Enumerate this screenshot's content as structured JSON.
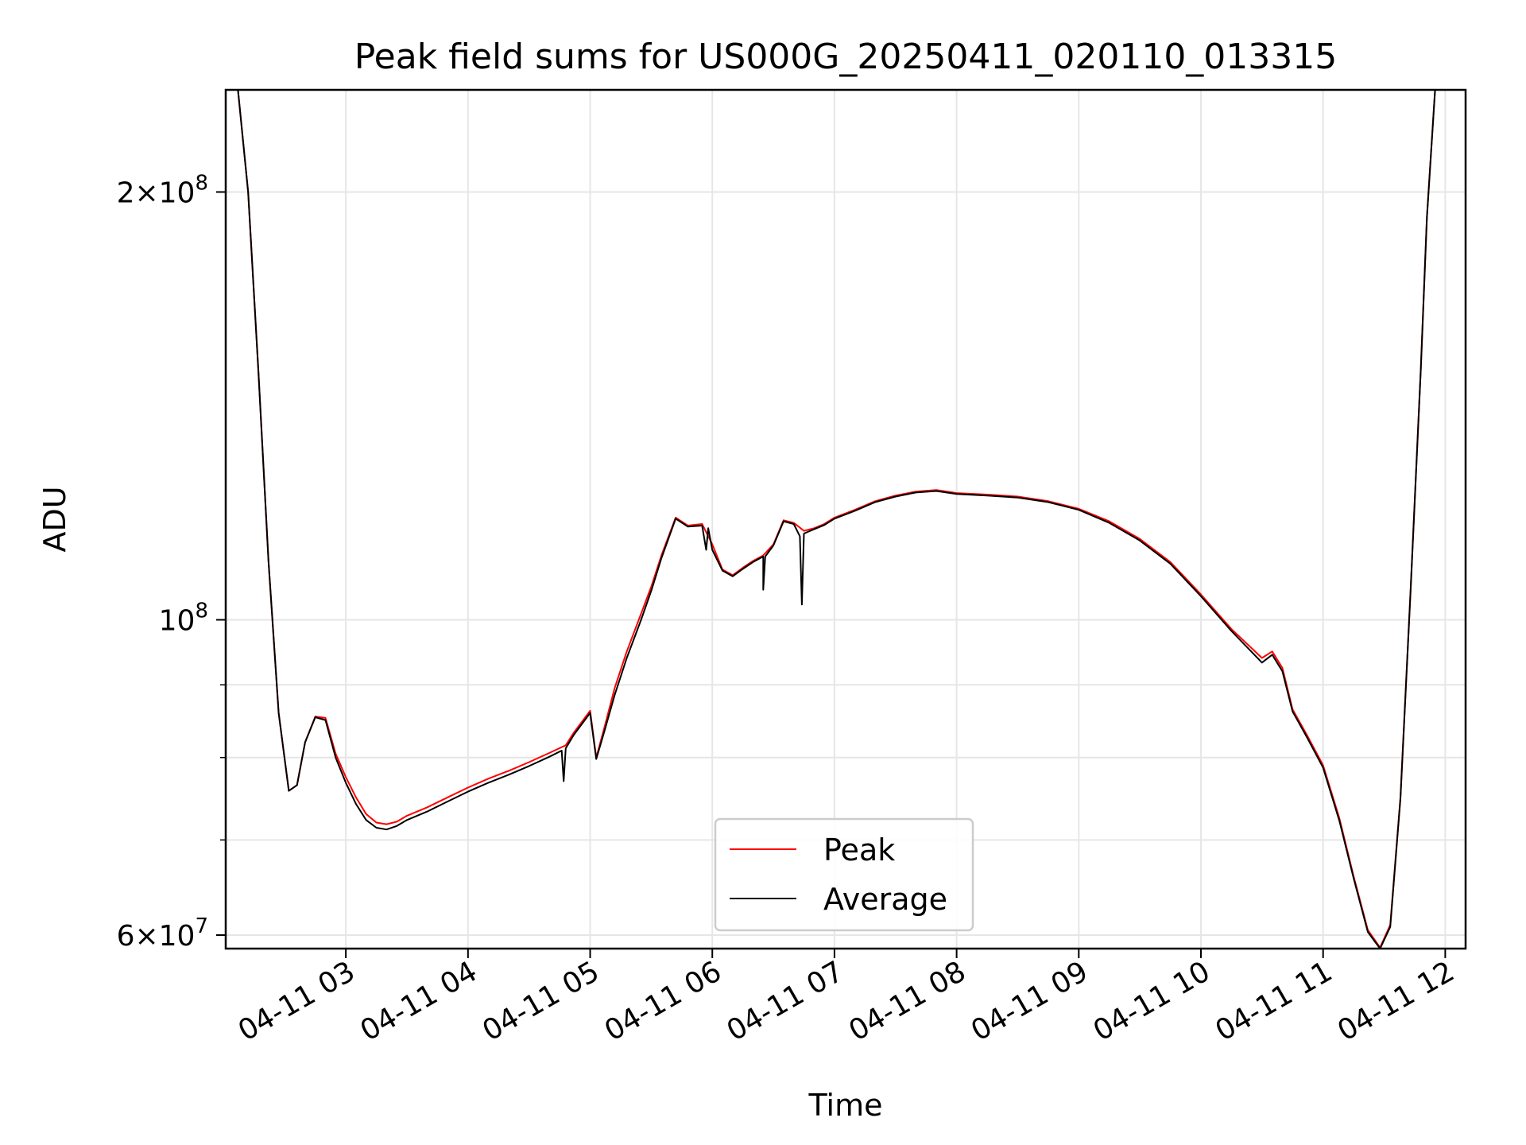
{
  "chart_data": {
    "type": "line",
    "title": "Peak field sums for US000G_20250411_020110_013315",
    "xlabel": "Time",
    "ylabel": "ADU",
    "y_scale": "log",
    "ylim": [
      58700000,
      236000000
    ],
    "xlim": [
      "2025-04-11 02:01",
      "2025-04-11 12:10"
    ],
    "grid": true,
    "legend_position": "lower center",
    "x_ticks": [
      {
        "t": "2025-04-11 03:00",
        "label": "04-11 03"
      },
      {
        "t": "2025-04-11 04:00",
        "label": "04-11 04"
      },
      {
        "t": "2025-04-11 05:00",
        "label": "04-11 05"
      },
      {
        "t": "2025-04-11 06:00",
        "label": "04-11 06"
      },
      {
        "t": "2025-04-11 07:00",
        "label": "04-11 07"
      },
      {
        "t": "2025-04-11 08:00",
        "label": "04-11 08"
      },
      {
        "t": "2025-04-11 09:00",
        "label": "04-11 09"
      },
      {
        "t": "2025-04-11 10:00",
        "label": "04-11 10"
      },
      {
        "t": "2025-04-11 11:00",
        "label": "04-11 11"
      },
      {
        "t": "2025-04-11 12:00",
        "label": "04-11 12"
      }
    ],
    "y_major_ticks": [
      {
        "value": 60000000,
        "base": "6×10",
        "exp": "7"
      },
      {
        "value": 100000000,
        "base": "10",
        "exp": "8"
      },
      {
        "value": 200000000,
        "base": "2×10",
        "exp": "8"
      }
    ],
    "y_minor_ticks": [
      70000000,
      80000000,
      90000000
    ],
    "series": [
      {
        "name": "Peak",
        "color": "#ff0000",
        "points": [
          [
            "2025-04-11 02:07",
            236000000
          ],
          [
            "2025-04-11 02:12",
            200000000
          ],
          [
            "2025-04-11 02:17",
            150000000
          ],
          [
            "2025-04-11 02:22",
            110000000
          ],
          [
            "2025-04-11 02:27",
            86000000
          ],
          [
            "2025-04-11 02:32",
            75800000
          ],
          [
            "2025-04-11 02:36",
            76500000
          ],
          [
            "2025-04-11 02:40",
            82000000
          ],
          [
            "2025-04-11 02:45",
            85500000
          ],
          [
            "2025-04-11 02:50",
            85300000
          ],
          [
            "2025-04-11 02:55",
            80500000
          ],
          [
            "2025-04-11 03:00",
            77500000
          ],
          [
            "2025-04-11 03:05",
            75000000
          ],
          [
            "2025-04-11 03:10",
            73000000
          ],
          [
            "2025-04-11 03:15",
            72000000
          ],
          [
            "2025-04-11 03:20",
            71800000
          ],
          [
            "2025-04-11 03:25",
            72100000
          ],
          [
            "2025-04-11 03:30",
            72800000
          ],
          [
            "2025-04-11 03:40",
            73800000
          ],
          [
            "2025-04-11 03:50",
            75000000
          ],
          [
            "2025-04-11 04:00",
            76200000
          ],
          [
            "2025-04-11 04:10",
            77300000
          ],
          [
            "2025-04-11 04:20",
            78300000
          ],
          [
            "2025-04-11 04:30",
            79400000
          ],
          [
            "2025-04-11 04:40",
            80600000
          ],
          [
            "2025-04-11 04:48",
            81600000
          ],
          [
            "2025-04-11 04:52",
            83300000
          ],
          [
            "2025-04-11 05:00",
            86300000
          ],
          [
            "2025-04-11 05:03",
            80000000
          ],
          [
            "2025-04-11 05:07",
            84000000
          ],
          [
            "2025-04-11 05:12",
            89500000
          ],
          [
            "2025-04-11 05:18",
            95000000
          ],
          [
            "2025-04-11 05:25",
            101000000
          ],
          [
            "2025-04-11 05:30",
            105500000
          ],
          [
            "2025-04-11 05:35",
            111000000
          ],
          [
            "2025-04-11 05:42",
            118000000
          ],
          [
            "2025-04-11 05:48",
            116500000
          ],
          [
            "2025-04-11 05:55",
            116800000
          ],
          [
            "2025-04-11 06:00",
            113000000
          ],
          [
            "2025-04-11 06:05",
            108500000
          ],
          [
            "2025-04-11 06:10",
            107500000
          ],
          [
            "2025-04-11 06:15",
            108800000
          ],
          [
            "2025-04-11 06:20",
            110000000
          ],
          [
            "2025-04-11 06:25",
            111000000
          ],
          [
            "2025-04-11 06:30",
            113000000
          ],
          [
            "2025-04-11 06:35",
            117500000
          ],
          [
            "2025-04-11 06:40",
            117000000
          ],
          [
            "2025-04-11 06:45",
            115500000
          ],
          [
            "2025-04-11 06:50",
            116000000
          ],
          [
            "2025-04-11 06:55",
            116800000
          ],
          [
            "2025-04-11 07:00",
            118000000
          ],
          [
            "2025-04-11 07:10",
            119500000
          ],
          [
            "2025-04-11 07:20",
            121200000
          ],
          [
            "2025-04-11 07:30",
            122300000
          ],
          [
            "2025-04-11 07:40",
            123100000
          ],
          [
            "2025-04-11 07:50",
            123400000
          ],
          [
            "2025-04-11 08:00",
            122800000
          ],
          [
            "2025-04-11 08:15",
            122500000
          ],
          [
            "2025-04-11 08:30",
            122100000
          ],
          [
            "2025-04-11 08:45",
            121200000
          ],
          [
            "2025-04-11 09:00",
            119700000
          ],
          [
            "2025-04-11 09:15",
            117300000
          ],
          [
            "2025-04-11 09:30",
            114000000
          ],
          [
            "2025-04-11 09:45",
            109800000
          ],
          [
            "2025-04-11 10:00",
            104200000
          ],
          [
            "2025-04-11 10:15",
            98500000
          ],
          [
            "2025-04-11 10:30",
            94000000
          ],
          [
            "2025-04-11 10:35",
            95000000
          ],
          [
            "2025-04-11 10:40",
            92500000
          ],
          [
            "2025-04-11 10:45",
            86500000
          ],
          [
            "2025-04-11 10:52",
            83000000
          ],
          [
            "2025-04-11 11:00",
            79000000
          ],
          [
            "2025-04-11 11:08",
            72500000
          ],
          [
            "2025-04-11 11:15",
            66000000
          ],
          [
            "2025-04-11 11:22",
            60500000
          ],
          [
            "2025-04-11 11:28",
            58800000
          ],
          [
            "2025-04-11 11:33",
            61000000
          ],
          [
            "2025-04-11 11:38",
            75000000
          ],
          [
            "2025-04-11 11:43",
            105000000
          ],
          [
            "2025-04-11 11:48",
            150000000
          ],
          [
            "2025-04-11 11:51",
            192000000
          ],
          [
            "2025-04-11 11:55",
            236000000
          ]
        ]
      },
      {
        "name": "Average",
        "color": "#000000",
        "points": [
          [
            "2025-04-11 02:07",
            236000000
          ],
          [
            "2025-04-11 02:12",
            200000000
          ],
          [
            "2025-04-11 02:17",
            150000000
          ],
          [
            "2025-04-11 02:22",
            110000000
          ],
          [
            "2025-04-11 02:27",
            86000000
          ],
          [
            "2025-04-11 02:32",
            75800000
          ],
          [
            "2025-04-11 02:36",
            76500000
          ],
          [
            "2025-04-11 02:40",
            82000000
          ],
          [
            "2025-04-11 02:45",
            85400000
          ],
          [
            "2025-04-11 02:50",
            85000000
          ],
          [
            "2025-04-11 02:55",
            80000000
          ],
          [
            "2025-04-11 03:00",
            76800000
          ],
          [
            "2025-04-11 03:05",
            74200000
          ],
          [
            "2025-04-11 03:10",
            72300000
          ],
          [
            "2025-04-11 03:15",
            71400000
          ],
          [
            "2025-04-11 03:20",
            71200000
          ],
          [
            "2025-04-11 03:25",
            71600000
          ],
          [
            "2025-04-11 03:30",
            72300000
          ],
          [
            "2025-04-11 03:40",
            73300000
          ],
          [
            "2025-04-11 03:50",
            74500000
          ],
          [
            "2025-04-11 04:00",
            75700000
          ],
          [
            "2025-04-11 04:10",
            76800000
          ],
          [
            "2025-04-11 04:20",
            77800000
          ],
          [
            "2025-04-11 04:30",
            78900000
          ],
          [
            "2025-04-11 04:40",
            80100000
          ],
          [
            "2025-04-11 04:46",
            80900000
          ],
          [
            "2025-04-11 04:47",
            77000000
          ],
          [
            "2025-04-11 04:48",
            81200000
          ],
          [
            "2025-04-11 04:52",
            83000000
          ],
          [
            "2025-04-11 05:00",
            86000000
          ],
          [
            "2025-04-11 05:03",
            79800000
          ],
          [
            "2025-04-11 05:07",
            83500000
          ],
          [
            "2025-04-11 05:12",
            88500000
          ],
          [
            "2025-04-11 05:18",
            94000000
          ],
          [
            "2025-04-11 05:25",
            100000000
          ],
          [
            "2025-04-11 05:30",
            104800000
          ],
          [
            "2025-04-11 05:35",
            110500000
          ],
          [
            "2025-04-11 05:42",
            117800000
          ],
          [
            "2025-04-11 05:48",
            116300000
          ],
          [
            "2025-04-11 05:55",
            116500000
          ],
          [
            "2025-04-11 05:57",
            112000000
          ],
          [
            "2025-04-11 05:58",
            116000000
          ],
          [
            "2025-04-11 06:00",
            112000000
          ],
          [
            "2025-04-11 06:05",
            108300000
          ],
          [
            "2025-04-11 06:10",
            107300000
          ],
          [
            "2025-04-11 06:15",
            108600000
          ],
          [
            "2025-04-11 06:20",
            109800000
          ],
          [
            "2025-04-11 06:25",
            110800000
          ],
          [
            "2025-04-11 06:25",
            105000000
          ],
          [
            "2025-04-11 06:26",
            110800000
          ],
          [
            "2025-04-11 06:30",
            112800000
          ],
          [
            "2025-04-11 06:35",
            117300000
          ],
          [
            "2025-04-11 06:40",
            116800000
          ],
          [
            "2025-04-11 06:43",
            114500000
          ],
          [
            "2025-04-11 06:44",
            102500000
          ],
          [
            "2025-04-11 06:45",
            115000000
          ],
          [
            "2025-04-11 06:50",
            115800000
          ],
          [
            "2025-04-11 06:55",
            116600000
          ],
          [
            "2025-04-11 07:00",
            117800000
          ],
          [
            "2025-04-11 07:10",
            119300000
          ],
          [
            "2025-04-11 07:20",
            121000000
          ],
          [
            "2025-04-11 07:30",
            122100000
          ],
          [
            "2025-04-11 07:40",
            122900000
          ],
          [
            "2025-04-11 07:50",
            123200000
          ],
          [
            "2025-04-11 08:00",
            122600000
          ],
          [
            "2025-04-11 08:15",
            122300000
          ],
          [
            "2025-04-11 08:30",
            121900000
          ],
          [
            "2025-04-11 08:45",
            121000000
          ],
          [
            "2025-04-11 09:00",
            119500000
          ],
          [
            "2025-04-11 09:15",
            117000000
          ],
          [
            "2025-04-11 09:30",
            113700000
          ],
          [
            "2025-04-11 09:45",
            109500000
          ],
          [
            "2025-04-11 10:00",
            103900000
          ],
          [
            "2025-04-11 10:15",
            98200000
          ],
          [
            "2025-04-11 10:30",
            93300000
          ],
          [
            "2025-04-11 10:35",
            94500000
          ],
          [
            "2025-04-11 10:40",
            92000000
          ],
          [
            "2025-04-11 10:45",
            86200000
          ],
          [
            "2025-04-11 10:52",
            82700000
          ],
          [
            "2025-04-11 11:00",
            78700000
          ],
          [
            "2025-04-11 11:08",
            72200000
          ],
          [
            "2025-04-11 11:15",
            65800000
          ],
          [
            "2025-04-11 11:22",
            60300000
          ],
          [
            "2025-04-11 11:28",
            58700000
          ],
          [
            "2025-04-11 11:33",
            60800000
          ],
          [
            "2025-04-11 11:38",
            74800000
          ],
          [
            "2025-04-11 11:43",
            104800000
          ],
          [
            "2025-04-11 11:48",
            149800000
          ],
          [
            "2025-04-11 11:51",
            191800000
          ],
          [
            "2025-04-11 11:55",
            236000000
          ]
        ]
      }
    ]
  }
}
